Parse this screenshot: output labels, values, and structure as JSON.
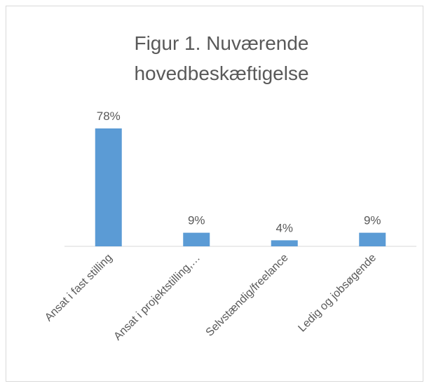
{
  "chart_data": {
    "type": "bar",
    "title": "Figur 1. Nuværende hovedbeskæftigelse",
    "categories": [
      "Ansat i fast stilling",
      "Ansat i projektstilling,…",
      "Selvstændig/freelance",
      "Ledig og jobsøgende"
    ],
    "values": [
      78,
      9,
      4,
      9
    ],
    "value_labels": [
      "78%",
      "9%",
      "4%",
      "9%"
    ],
    "color": "#5b9bd5"
  }
}
